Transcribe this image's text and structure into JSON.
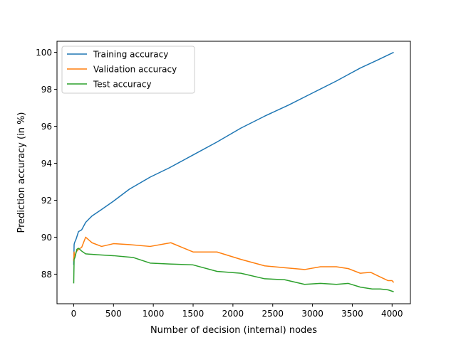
{
  "chart_data": {
    "type": "line",
    "title": "",
    "xlabel": "Number of decision (internal) nodes",
    "ylabel": "Prediction accuracy (in %)",
    "xlim": [
      -210,
      4230
    ],
    "ylim": [
      86.4,
      100.6
    ],
    "x_ticks": [
      0,
      500,
      1000,
      1500,
      2000,
      2500,
      3000,
      3500,
      4000
    ],
    "x_tick_labels": [
      "0",
      "500",
      "1000",
      "1500",
      "2000",
      "2500",
      "3000",
      "3500",
      "4000"
    ],
    "y_ticks": [
      88,
      90,
      92,
      94,
      96,
      98,
      100
    ],
    "y_tick_labels": [
      "88",
      "90",
      "92",
      "94",
      "96",
      "98",
      "100"
    ],
    "grid": false,
    "legend_position": "upper-left",
    "series": [
      {
        "name": "Training accuracy",
        "color": "#1f77b4",
        "x": [
          0,
          5,
          10,
          30,
          60,
          100,
          150,
          230,
          350,
          500,
          700,
          960,
          1200,
          1500,
          1800,
          2100,
          2400,
          2700,
          3000,
          3300,
          3450,
          3600,
          3800,
          4020
        ],
        "y": [
          88.5,
          89.6,
          89.7,
          89.9,
          90.3,
          90.4,
          90.8,
          91.15,
          91.5,
          91.95,
          92.6,
          93.25,
          93.75,
          94.45,
          95.15,
          95.9,
          96.55,
          97.15,
          97.8,
          98.45,
          98.8,
          99.15,
          99.55,
          100.0
        ]
      },
      {
        "name": "Validation accuracy",
        "color": "#ff7f0e",
        "x": [
          0,
          5,
          10,
          30,
          60,
          100,
          150,
          230,
          350,
          500,
          700,
          960,
          1220,
          1500,
          1800,
          2100,
          2400,
          2650,
          2900,
          3100,
          3300,
          3450,
          3600,
          3730,
          3850,
          3950,
          4000,
          4020
        ],
        "y": [
          88.7,
          89.2,
          88.9,
          89.2,
          89.35,
          89.45,
          90.0,
          89.7,
          89.5,
          89.65,
          89.6,
          89.5,
          89.7,
          89.2,
          89.2,
          88.8,
          88.45,
          88.35,
          88.25,
          88.4,
          88.4,
          88.3,
          88.05,
          88.1,
          87.85,
          87.65,
          87.65,
          87.55
        ]
      },
      {
        "name": "Test accuracy",
        "color": "#2ca02c",
        "x": [
          0,
          5,
          15,
          40,
          60,
          100,
          150,
          300,
          500,
          750,
          960,
          1200,
          1500,
          1800,
          2100,
          2400,
          2650,
          2900,
          3100,
          3300,
          3450,
          3600,
          3750,
          3850,
          3950,
          4020
        ],
        "y": [
          87.5,
          88.8,
          88.9,
          89.35,
          89.4,
          89.25,
          89.1,
          89.05,
          89.0,
          88.9,
          88.6,
          88.55,
          88.5,
          88.15,
          88.05,
          87.75,
          87.7,
          87.45,
          87.5,
          87.45,
          87.5,
          87.3,
          87.2,
          87.2,
          87.15,
          87.05
        ]
      }
    ]
  }
}
